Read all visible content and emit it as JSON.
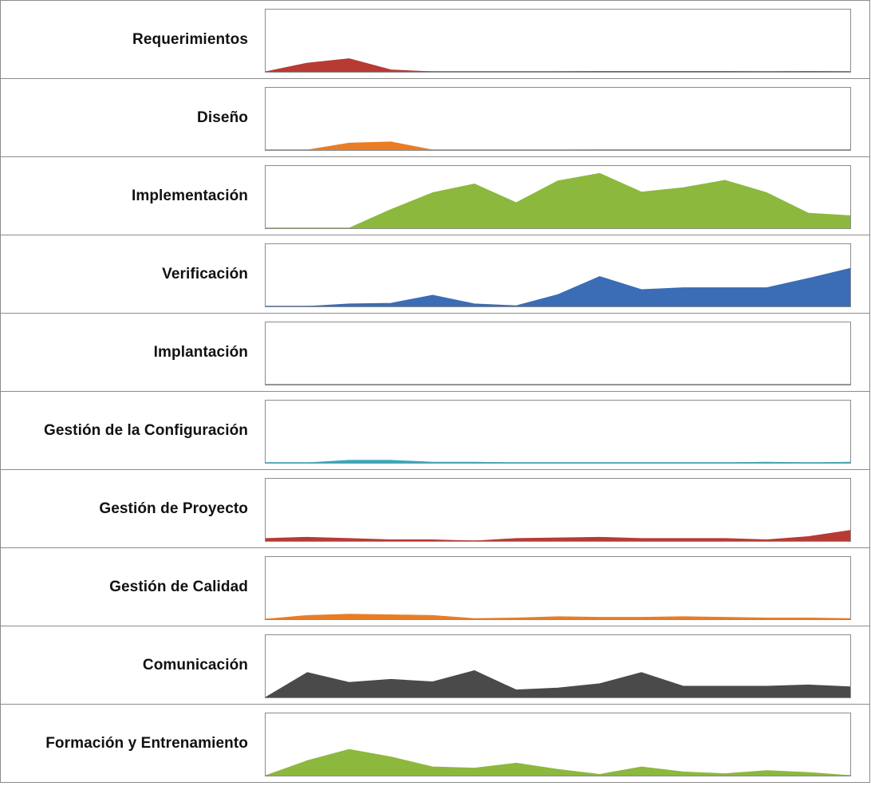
{
  "chart_data": {
    "type": "area",
    "layout": "small-multiples-stacked",
    "x_points": 15,
    "ylim": [
      0,
      100
    ],
    "grid": false,
    "legend": "none",
    "series": [
      {
        "name": "Requerimientos",
        "color": "#b83a35",
        "values": [
          0,
          14,
          21,
          3,
          0,
          0,
          0,
          0,
          0.5,
          0.5,
          0.5,
          0.5,
          0,
          0.5,
          0
        ]
      },
      {
        "name": "Diseño",
        "color": "#e97d25",
        "values": [
          0,
          0,
          11,
          13,
          0,
          0,
          0,
          0,
          0.5,
          0.5,
          0.5,
          0.5,
          0.5,
          0.5,
          0.5
        ]
      },
      {
        "name": "Implementación",
        "color": "#8cb83e",
        "values": [
          0,
          0,
          0,
          30,
          57,
          71,
          41,
          76,
          88,
          58,
          65,
          77,
          57,
          24,
          20
        ]
      },
      {
        "name": "Verificación",
        "color": "#3a6db5",
        "values": [
          0,
          0,
          4,
          5,
          18,
          4,
          1,
          19,
          48,
          27,
          30,
          30,
          30,
          45,
          61
        ]
      },
      {
        "name": "Implantación",
        "color": "#7f7f7f",
        "values": [
          0,
          0,
          0,
          0,
          0,
          0,
          0,
          0,
          0,
          0,
          0,
          0,
          0,
          0,
          0
        ]
      },
      {
        "name": "Gestión de la Configuración",
        "color": "#35a9bf",
        "values": [
          0,
          0,
          4,
          4,
          1,
          1,
          0,
          0,
          0,
          0,
          0,
          0,
          1,
          0,
          1
        ]
      },
      {
        "name": "Gestión de Proyecto",
        "color": "#b83a35",
        "values": [
          4,
          6,
          4,
          2,
          2,
          0,
          4,
          5,
          6,
          4,
          4,
          4,
          2,
          7,
          17
        ]
      },
      {
        "name": "Gestión de Calidad",
        "color": "#e97d25",
        "values": [
          0,
          6,
          8,
          7,
          6,
          1,
          2,
          4,
          3,
          3,
          4,
          3,
          2,
          2,
          1
        ]
      },
      {
        "name": "Comunicación",
        "color": "#4a4a4a",
        "values": [
          0,
          40,
          24,
          29,
          25,
          43,
          12,
          15,
          22,
          40,
          18,
          18,
          18,
          20,
          17
        ]
      },
      {
        "name": "Formación y Entrenamiento",
        "color": "#8cb83e",
        "values": [
          0,
          24,
          42,
          30,
          14,
          12,
          20,
          10,
          2,
          14,
          6,
          3,
          8,
          5,
          0
        ]
      }
    ]
  }
}
